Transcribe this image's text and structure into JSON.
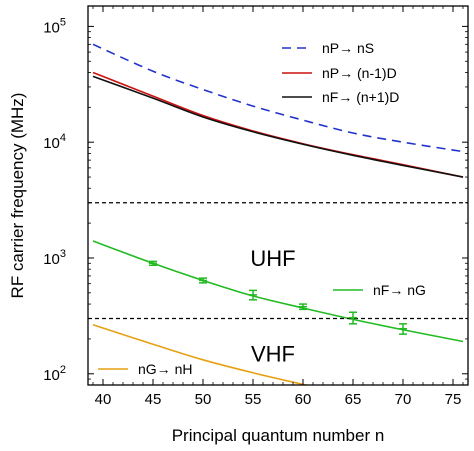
{
  "chart_data": {
    "type": "line",
    "title": "",
    "xlabel": "Principal quantum number n",
    "ylabel": "RF carrier frequency (MHz)",
    "xlim": [
      38.5,
      76.5
    ],
    "ylim": [
      80,
      150000
    ],
    "yscale": "log",
    "x_ticks": [
      40,
      45,
      50,
      55,
      60,
      65,
      70,
      75
    ],
    "y_ticks": [
      {
        "value": 100,
        "base": "10",
        "exp": "2"
      },
      {
        "value": 1000,
        "base": "10",
        "exp": "3"
      },
      {
        "value": 10000,
        "base": "10",
        "exp": "4"
      },
      {
        "value": 100000,
        "base": "10",
        "exp": "5"
      }
    ],
    "grid": false,
    "legend_position": "top-right",
    "series": [
      {
        "name": "nP→ nS",
        "color": "#2233cc",
        "dash": "dashed",
        "x": [
          39,
          45,
          50,
          55,
          60,
          65,
          70,
          76
        ],
        "y": [
          70000,
          41000,
          28500,
          20500,
          15500,
          12000,
          10000,
          8300
        ]
      },
      {
        "name": "nP→ (n-1)D",
        "color": "#cc1111",
        "dash": "solid",
        "x": [
          39,
          45,
          50,
          55,
          60,
          65,
          70,
          76
        ],
        "y": [
          40000,
          25000,
          17000,
          12500,
          9700,
          7800,
          6400,
          5000
        ]
      },
      {
        "name": "nF→ (n+1)D",
        "color": "#111111",
        "dash": "solid",
        "x": [
          39,
          45,
          50,
          55,
          60,
          65,
          70,
          76
        ],
        "y": [
          37000,
          24000,
          16500,
          12300,
          9600,
          7700,
          6300,
          5000
        ]
      },
      {
        "name": "nF→ nG",
        "color": "#22bb22",
        "dash": "solid",
        "x": [
          39,
          45,
          50,
          55,
          60,
          65,
          70,
          76
        ],
        "y": [
          1400,
          900,
          640,
          470,
          370,
          295,
          240,
          190
        ],
        "error_points": [
          {
            "x": 45,
            "y": 900,
            "err": 35
          },
          {
            "x": 50,
            "y": 640,
            "err": 30
          },
          {
            "x": 55,
            "y": 480,
            "err": 45
          },
          {
            "x": 60,
            "y": 380,
            "err": 20
          },
          {
            "x": 65,
            "y": 305,
            "err": 35
          },
          {
            "x": 70,
            "y": 245,
            "err": 25
          }
        ]
      },
      {
        "name": "nG→ nH",
        "color": "#e6a012",
        "dash": "solid",
        "x": [
          39,
          45,
          50,
          55,
          60,
          61
        ],
        "y": [
          265,
          180,
          132,
          102,
          81,
          78
        ]
      }
    ],
    "reference_lines": [
      {
        "y": 3000,
        "style": "dashed"
      },
      {
        "y": 300,
        "style": "dashed"
      }
    ],
    "annotations": [
      {
        "text": "UHF",
        "x": 57,
        "y": 1000
      },
      {
        "text": "VHF",
        "x": 57,
        "y": 150
      }
    ]
  }
}
